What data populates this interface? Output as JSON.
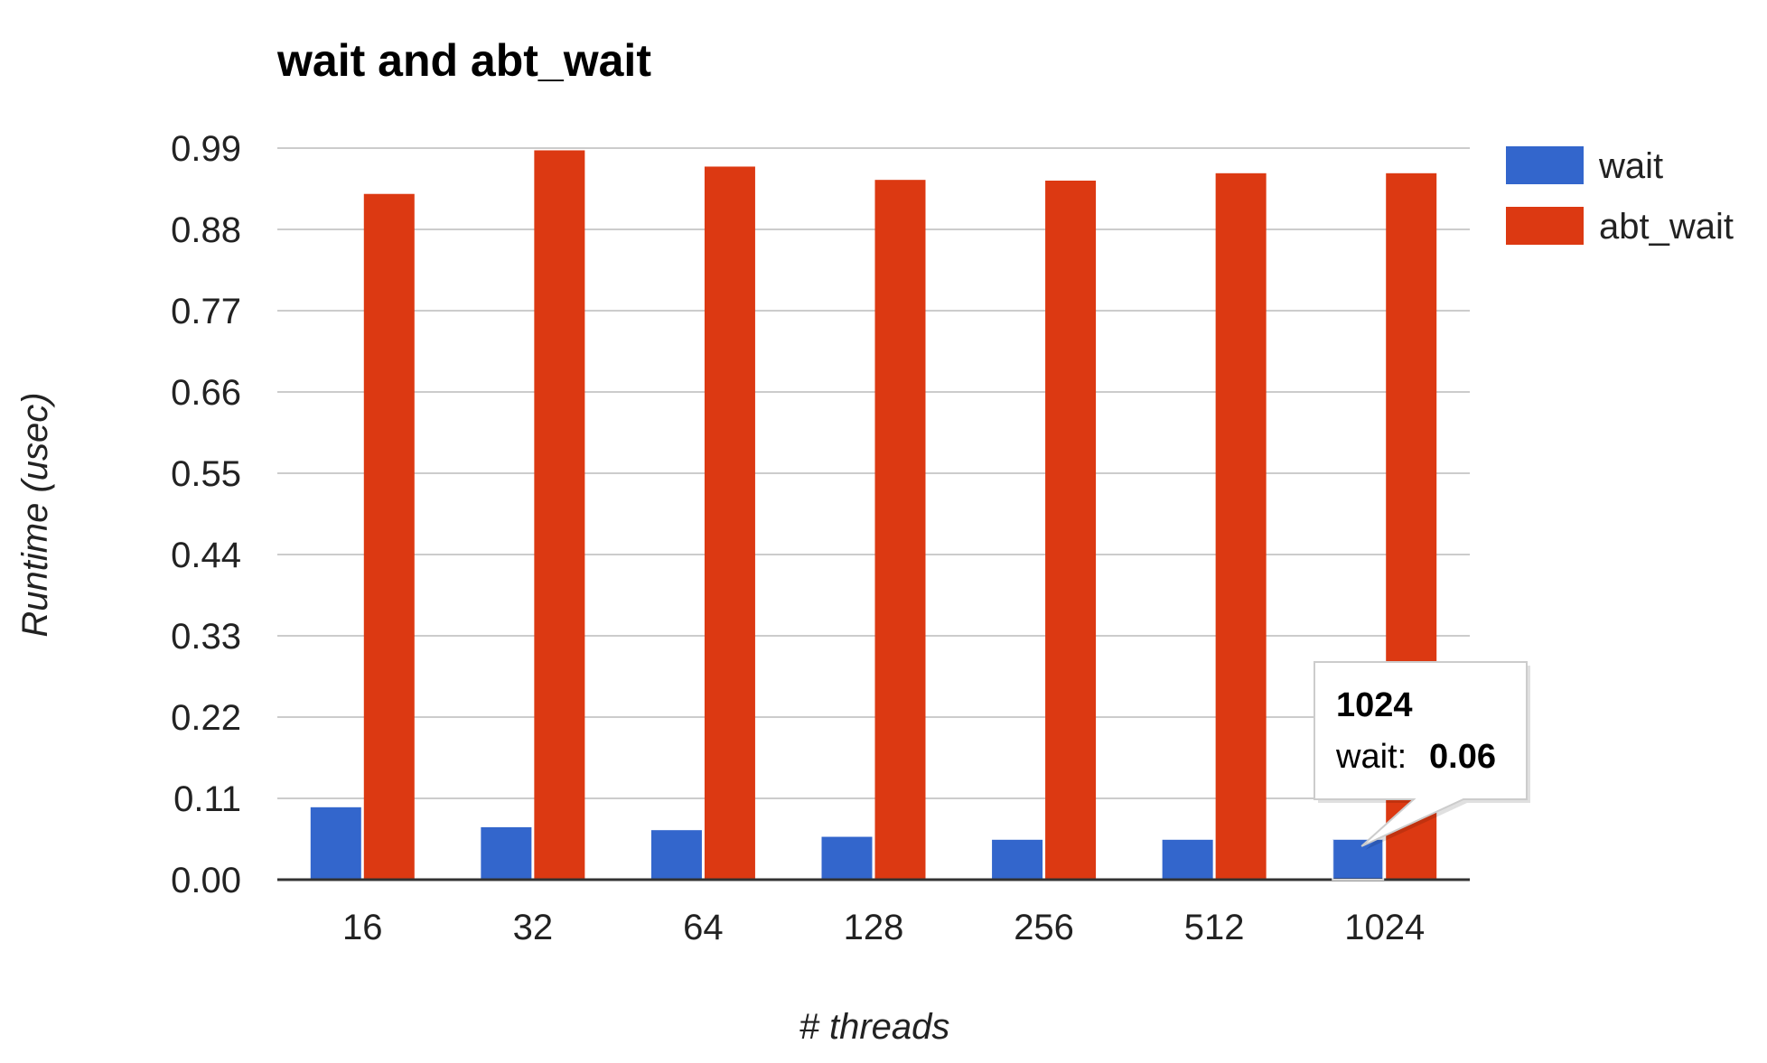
{
  "chart_data": {
    "type": "bar",
    "title": "wait and abt_wait",
    "xlabel": "# threads",
    "ylabel": "Runtime (usec)",
    "categories": [
      "16",
      "32",
      "64",
      "128",
      "256",
      "512",
      "1024"
    ],
    "series": [
      {
        "name": "wait",
        "color": "#3366cc",
        "values": [
          0.098,
          0.071,
          0.067,
          0.058,
          0.054,
          0.054,
          0.055
        ]
      },
      {
        "name": "abt_wait",
        "color": "#dc3912",
        "values": [
          0.928,
          0.987,
          0.965,
          0.947,
          0.946,
          0.956,
          0.956
        ]
      }
    ],
    "yticks": [
      "0.00",
      "0.11",
      "0.22",
      "0.33",
      "0.44",
      "0.55",
      "0.66",
      "0.77",
      "0.88",
      "0.99"
    ],
    "ylim": [
      0,
      0.99
    ],
    "grid": true,
    "legend_position": "right",
    "tooltip": {
      "category": "1024",
      "series_label": "wait:",
      "value": "0.06"
    }
  }
}
